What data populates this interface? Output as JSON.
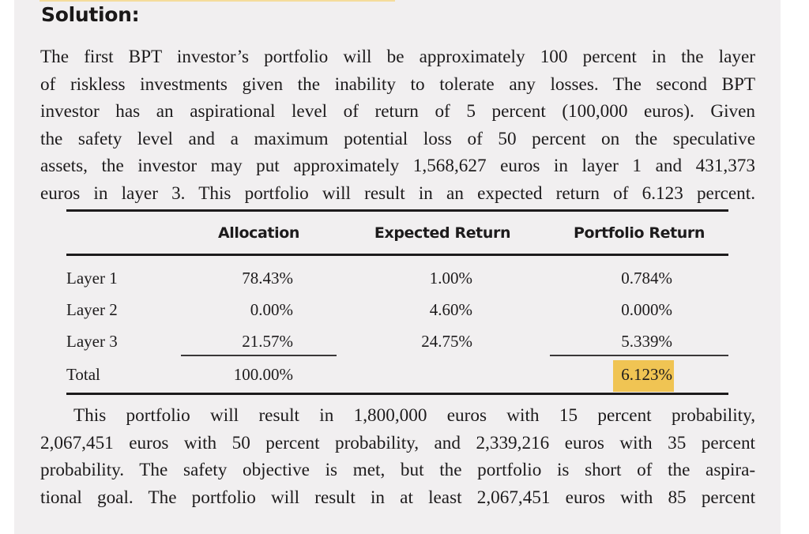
{
  "heading": "Solution:",
  "paragraph1": {
    "lines": [
      "The first BPT investor’s portfolio will be approximately 100 percent in the layer",
      "of riskless investments given the inability to tolerate any losses. The second BPT",
      "investor has an aspirational level of return of 5 percent (100,000 euros). Given",
      "the safety level and a maximum potential loss of 50 percent on the speculative",
      "assets, the investor may put approximately 1,568,627 euros in layer 1 and 431,373",
      "euros in layer 3. This portfolio will result in an expected return of 6.123 percent."
    ]
  },
  "table": {
    "headers": [
      "",
      "Allocation",
      "Expected Return",
      "Portfolio Return"
    ],
    "rows": [
      {
        "label": "Layer 1",
        "allocation": "78.43%",
        "expected_return": "1.00%",
        "portfolio_return": "0.784%"
      },
      {
        "label": "Layer 2",
        "allocation": "0.00%",
        "expected_return": "4.60%",
        "portfolio_return": "0.000%"
      },
      {
        "label": "Layer 3",
        "allocation": "21.57%",
        "expected_return": "24.75%",
        "portfolio_return": "5.339%"
      }
    ],
    "total": {
      "label": "Total",
      "allocation": "100.00%",
      "expected_return": "",
      "portfolio_return": "6.123%"
    },
    "highlight_color": "#f0c453"
  },
  "paragraph2": {
    "lines": [
      "This portfolio will result in 1,800,000 euros with 15 percent probability,",
      "2,067,451 euros with 50 percent probability, and 2,339,216 euros with 35 percent",
      "probability. The safety objective is met, but the portfolio is short of the aspira-",
      "tional goal. The portfolio will result in at least 2,067,451 euros with 85 percent"
    ]
  }
}
